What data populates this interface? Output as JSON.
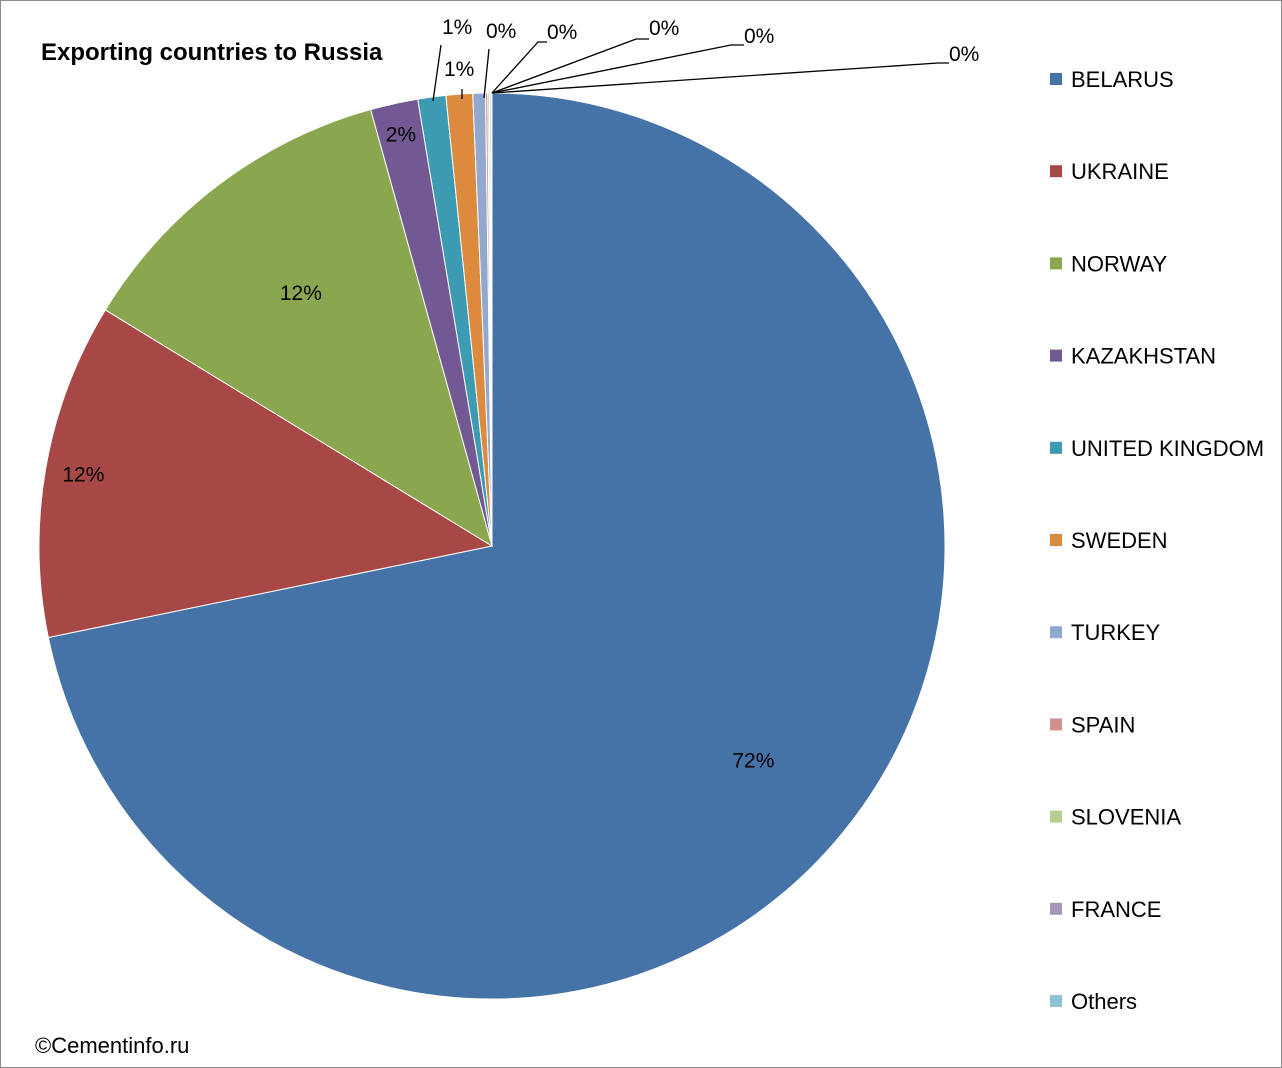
{
  "chart_data": {
    "type": "pie",
    "title": "Exporting countries to Russia",
    "legend_position": "right",
    "slices": [
      {
        "name": "BELARUS",
        "value": 72,
        "label": "72%",
        "color": "#4673A7"
      },
      {
        "name": "UKRAINE",
        "value": 12,
        "label": "12%",
        "color": "#A84846"
      },
      {
        "name": "NORWAY",
        "value": 12,
        "label": "12%",
        "color": "#8AA64E"
      },
      {
        "name": "KAZAKHSTAN",
        "value": 1.7,
        "label": "2%",
        "color": "#725993"
      },
      {
        "name": "UNITED KINGDOM",
        "value": 1.0,
        "label": "1%",
        "color": "#3C9BB3"
      },
      {
        "name": "SWEDEN",
        "value": 0.95,
        "label": "1%",
        "color": "#DC8A3E"
      },
      {
        "name": "TURKEY",
        "value": 0.45,
        "label": "0%",
        "color": "#93A8CE"
      },
      {
        "name": "SPAIN",
        "value": 0.08,
        "label": "0%",
        "color": "#D1918F"
      },
      {
        "name": "SLOVENIA",
        "value": 0.06,
        "label": "0%",
        "color": "#B6CE91"
      },
      {
        "name": "FRANCE",
        "value": 0.05,
        "label": "0%",
        "color": "#A498BA"
      },
      {
        "name": "Others",
        "value": 0.04,
        "label": "0%",
        "color": "#8EC3D4"
      }
    ]
  },
  "credit": "©Cementinfo.ru"
}
